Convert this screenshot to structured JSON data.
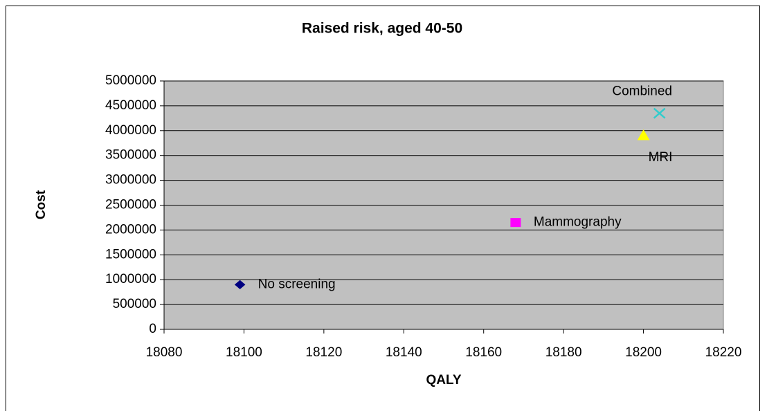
{
  "chart_data": {
    "type": "scatter",
    "title": "Raised risk, aged 40-50",
    "x_label": "QALY",
    "y_label": "Cost",
    "series": [
      {
        "name": "No screening",
        "color": "#000080",
        "marker": "diamond",
        "x": [
          18099
        ],
        "values": [
          900000
        ]
      },
      {
        "name": "Mammography",
        "color": "#ff00ff",
        "marker": "square",
        "x": [
          18168
        ],
        "values": [
          2150000
        ]
      },
      {
        "name": "MRI",
        "color": "#ffff00",
        "marker": "triangle",
        "x": [
          18200
        ],
        "values": [
          3900000
        ]
      },
      {
        "name": "Combined",
        "color": "#33cccc",
        "marker": "x",
        "x": [
          18204
        ],
        "values": [
          4350000
        ]
      }
    ],
    "xlim": [
      18080,
      18220
    ],
    "xticks": [
      18080,
      18100,
      18120,
      18140,
      18160,
      18180,
      18200,
      18220
    ],
    "ylim": [
      0,
      5000000
    ],
    "yticks": [
      0,
      500000,
      1000000,
      1500000,
      2000000,
      2500000,
      3000000,
      3500000,
      4000000,
      4500000,
      5000000
    ],
    "grid": true,
    "plot_background": "#c0c0c0"
  }
}
